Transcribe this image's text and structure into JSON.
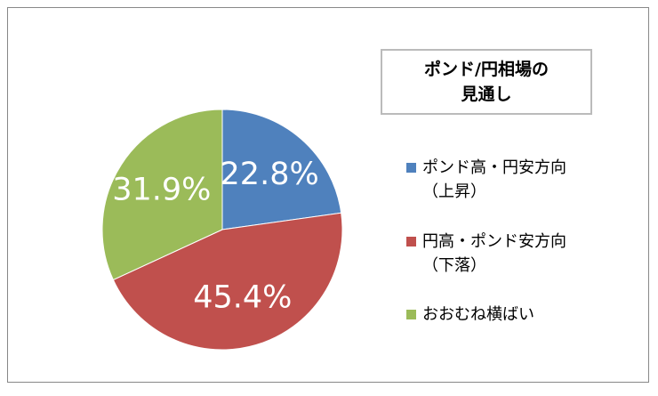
{
  "chart_data": {
    "type": "pie",
    "title": "ポンド/円相場の\n見通し",
    "categories": [
      "ポンド高・円安方向\n（上昇）",
      "円高・ポンド安方向\n（下落）",
      "おおむね横ばい"
    ],
    "values": [
      22.8,
      45.4,
      31.9
    ],
    "value_labels": [
      "22.8%",
      "45.4%",
      "31.9%"
    ],
    "colors": [
      "#4f81bd",
      "#c0504d",
      "#9bbb59"
    ],
    "legend": "right"
  }
}
